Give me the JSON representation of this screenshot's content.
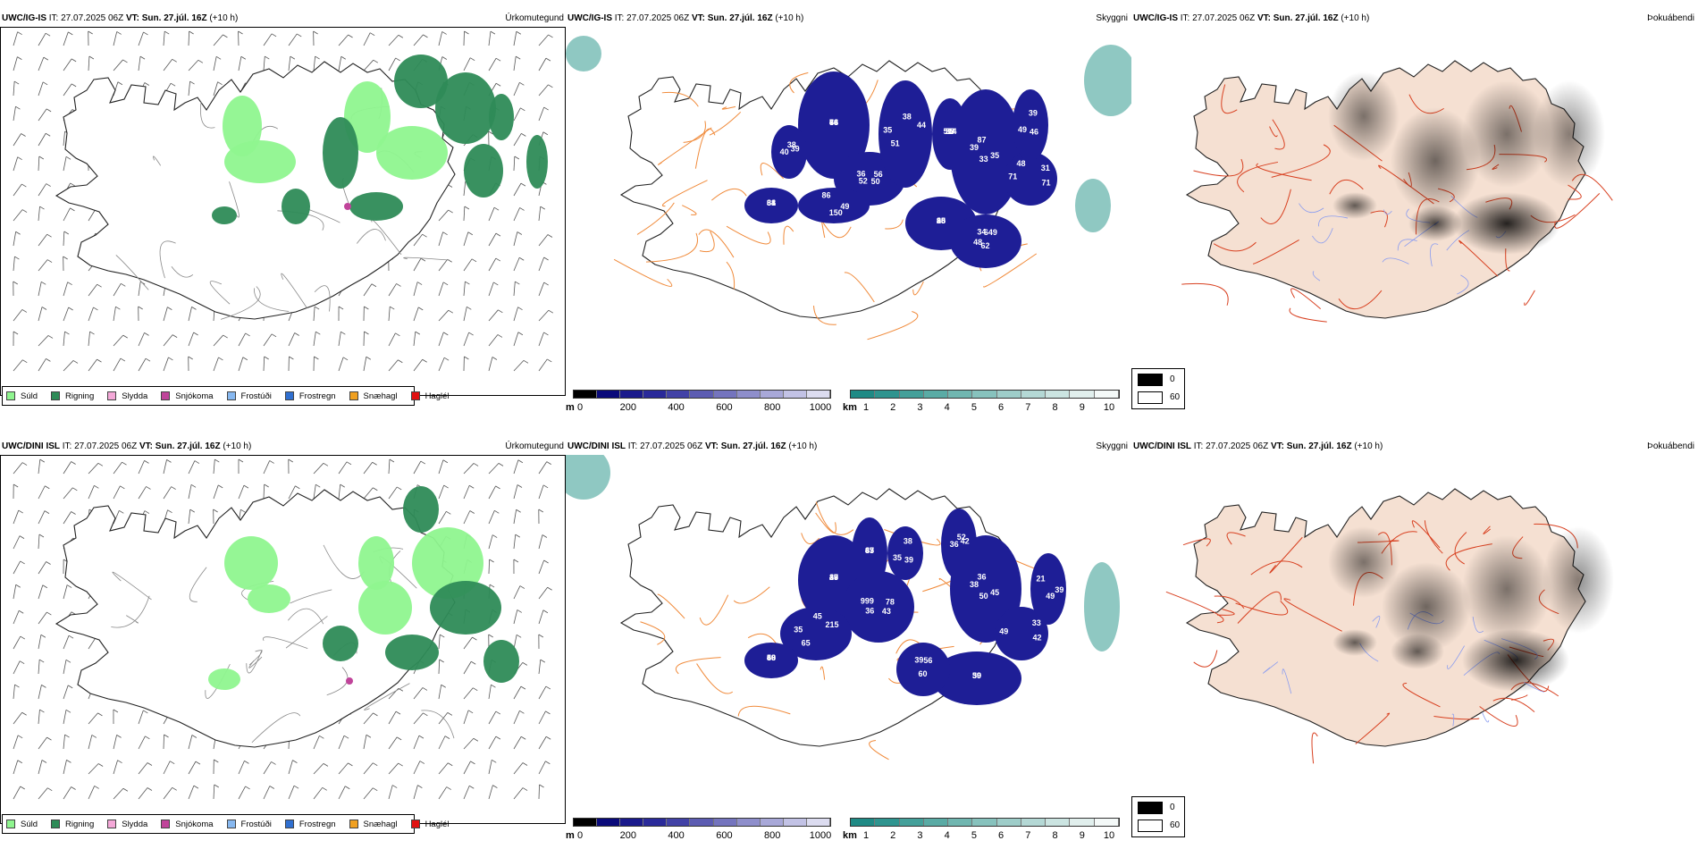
{
  "rows": [
    {
      "model": "UWC/IG-IS",
      "it_label": "IT:",
      "it_value": "27.07.2025 06Z",
      "vt_label": "VT:",
      "vt_value": "Sun. 27.júl. 16Z",
      "lead": "(+10 h)",
      "panels": {
        "precip": {
          "title": "Úrkomutegund"
        },
        "vis": {
          "title": "Skyggni",
          "labels": [
            "66",
            "52",
            "38",
            "37",
            "39",
            "31",
            "43",
            "34",
            "49",
            "34",
            "38",
            "46",
            "44",
            "56",
            "51",
            "59",
            "35",
            "71",
            "38",
            "62",
            "86",
            "61",
            "40",
            "39",
            "73",
            "36",
            "44",
            "514",
            "87",
            "71",
            "90",
            "649",
            "150",
            "38",
            "39",
            "49",
            "36",
            "50",
            "35",
            "35",
            "33",
            "48",
            "25",
            "48"
          ]
        },
        "fog": {
          "title": "Þokuábendi"
        }
      }
    },
    {
      "model": "UWC/DINI ISL",
      "it_label": "IT:",
      "it_value": "27.07.2025 06Z",
      "vt_label": "VT:",
      "vt_value": "Sun. 27.júl. 16Z",
      "lead": "(+10 h)",
      "panels": {
        "precip": {
          "title": "Úrkomutegund"
        },
        "vis": {
          "title": "Skyggni",
          "labels": [
            "43",
            "36",
            "45",
            "48",
            "38",
            "33",
            "50",
            "39",
            "39",
            "45",
            "52",
            "39",
            "47",
            "78",
            "65",
            "39",
            "45",
            "49",
            "39",
            "60",
            "21",
            "67",
            "36",
            "38",
            "36",
            "999",
            "215",
            "66",
            "36",
            "42",
            "39",
            "56",
            "49",
            "33",
            "42",
            "35",
            "29",
            "43",
            "35",
            "50",
            "50"
          ]
        },
        "fog": {
          "title": "Þokuábendi"
        }
      }
    }
  ],
  "precip_legend": [
    {
      "label": "Súld",
      "color": "#8ff58f"
    },
    {
      "label": "Rigning",
      "color": "#2e8b57"
    },
    {
      "label": "Slydda",
      "color": "#f4a8d8"
    },
    {
      "label": "Snjókoma",
      "color": "#c0449a"
    },
    {
      "label": "Frostúði",
      "color": "#87b8f0"
    },
    {
      "label": "Frostregn",
      "color": "#2f6fd0"
    },
    {
      "label": "Snæhagl",
      "color": "#f0a020"
    },
    {
      "label": "Haglél",
      "color": "#e01010"
    }
  ],
  "height_bar": {
    "unit": "m",
    "ticks": [
      "0",
      "200",
      "400",
      "600",
      "800",
      "1000"
    ],
    "colors": [
      "#000000",
      "#0a0a7a",
      "#1a1a8c",
      "#2a2a9a",
      "#4242a6",
      "#5c5cb2",
      "#7474be",
      "#8e8ecb",
      "#a8a8d8",
      "#c2c2e5",
      "#dcdcf0"
    ]
  },
  "vis_bar": {
    "unit": "km",
    "ticks": [
      "1",
      "2",
      "3",
      "4",
      "5",
      "6",
      "7",
      "8",
      "9",
      "10"
    ],
    "colors": [
      "#1f8a85",
      "#2f948f",
      "#44a09a",
      "#5aaba5",
      "#70b6b0",
      "#87c2bd",
      "#9ecdc9",
      "#b4d8d5",
      "#cbe4e1",
      "#e1efed",
      "#f4f9f8"
    ]
  },
  "fog_legend": [
    {
      "value": "0",
      "color": "#000000"
    },
    {
      "value": "60",
      "color": "#ffffff"
    }
  ],
  "colors": {
    "land_fog": "#f5e0d2",
    "roads_orange": "#f08a3a",
    "roads_red": "#d84020",
    "cloud_blue": "#1e1e96",
    "sea_teal": "#5fb0a8"
  }
}
